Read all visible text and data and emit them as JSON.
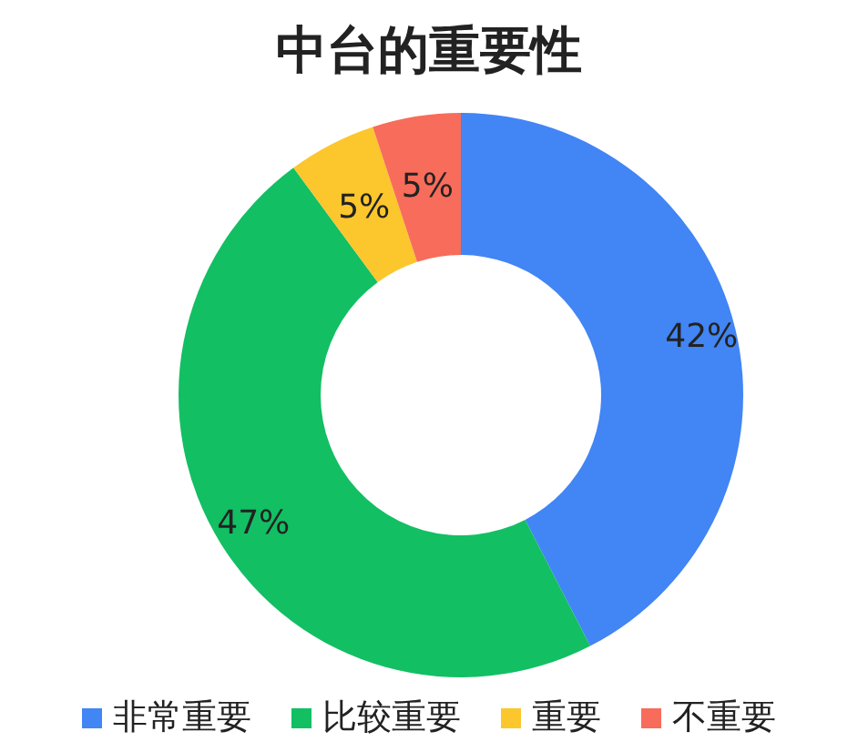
{
  "chart_data": {
    "type": "donut",
    "title": "中台的重要性",
    "categories": [
      "非常重要",
      "比较重要",
      "重要",
      "不重要"
    ],
    "values": [
      42,
      47,
      5,
      5
    ],
    "value_labels": [
      "42%",
      "47%",
      "5%",
      "5%"
    ],
    "colors": [
      "#4285f4",
      "#12bf63",
      "#fcc62d",
      "#f76c5a"
    ],
    "legend": "bottom"
  }
}
